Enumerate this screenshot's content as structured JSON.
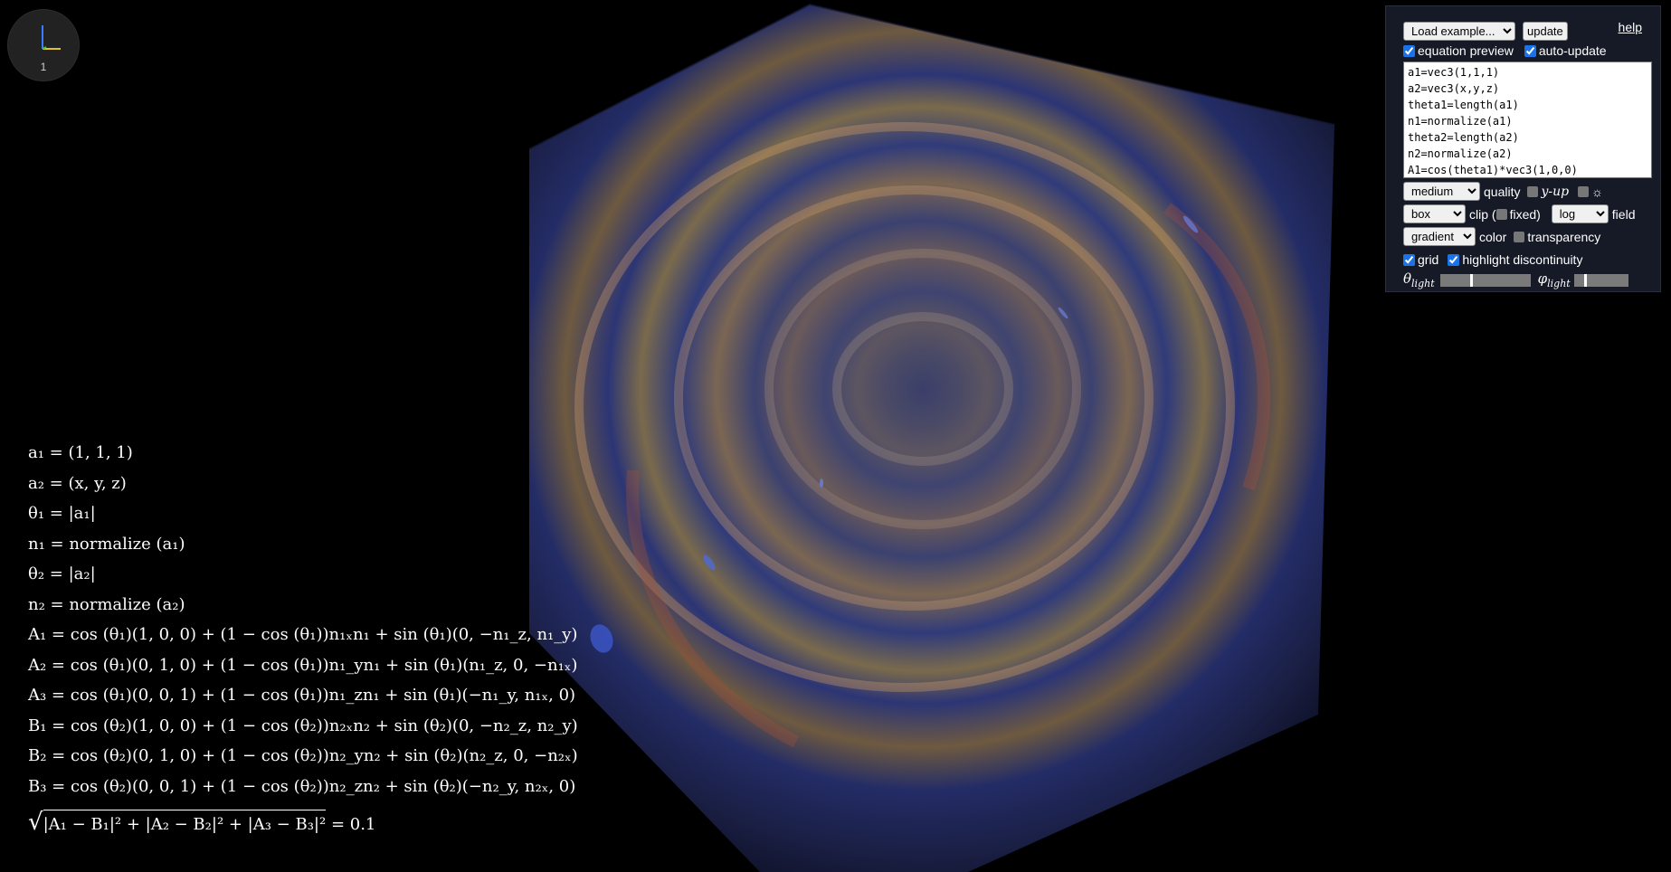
{
  "gizmo": {
    "label": "1"
  },
  "panel": {
    "example_select": "Load example...",
    "update_button": "update",
    "help_link": "help",
    "equation_preview_label": "equation preview",
    "equation_preview_checked": true,
    "auto_update_label": "auto-update",
    "auto_update_checked": true,
    "code": "a1=vec3(1,1,1)\na2=vec3(x,y,z)\ntheta1=length(a1)\nn1=normalize(a1)\ntheta2=length(a2)\nn2=normalize(a2)\nA1=cos(theta1)*vec3(1,0,0)",
    "quality_select": "medium",
    "quality_label": "quality",
    "y_up_label": "y-up",
    "light_icon": "sun-icon",
    "clip_select": "box",
    "clip_label": "clip (",
    "fixed_label": "fixed)",
    "field_select": "log",
    "field_label": "field",
    "color_select": "gradient",
    "color_label": "color",
    "transparency_label": "transparency",
    "grid_label": "grid",
    "grid_checked": true,
    "highlight_label": "highlight discontinuity",
    "highlight_checked": true,
    "theta_light_symbol": "θ",
    "theta_light_sub": "light",
    "phi_light_symbol": "φ",
    "phi_light_sub": "light",
    "theta_light_value": 0.33,
    "phi_light_value": 0.18
  },
  "equations": [
    "a₁ = (1, 1, 1)",
    "a₂ = (x, y, z)",
    "θ₁ = |a₁|",
    "n₁ = normalize (a₁)",
    "θ₂ = |a₂|",
    "n₂ = normalize (a₂)",
    "A₁ = cos (θ₁)(1, 0, 0) + (1 − cos (θ₁))n₁ₓn₁ + sin (θ₁)(0, −n₁_z, n₁_y)",
    "A₂ = cos (θ₁)(0, 1, 0) + (1 − cos (θ₁))n₁_yn₁ + sin (θ₁)(n₁_z, 0, −n₁ₓ)",
    "A₃ = cos (θ₁)(0, 0, 1) + (1 − cos (θ₁))n₁_zn₁ + sin (θ₁)(−n₁_y, n₁ₓ, 0)",
    "B₁ = cos (θ₂)(1, 0, 0) + (1 − cos (θ₂))n₂ₓn₂ + sin (θ₂)(0, −n₂_z, n₂_y)",
    "B₂ = cos (θ₂)(0, 1, 0) + (1 − cos (θ₂))n₂_yn₂ + sin (θ₂)(n₂_z, 0, −n₂ₓ)",
    "B₃ = cos (θ₂)(0, 0, 1) + (1 − cos (θ₂))n₂_zn₂ + sin (θ₂)(−n₂_y, n₂ₓ, 0)"
  ],
  "final_equation": {
    "radicand": "|A₁ − B₁|² + |A₂ − B₂|² + |A₃ − B₃|²",
    "rhs": "= 0.1"
  }
}
